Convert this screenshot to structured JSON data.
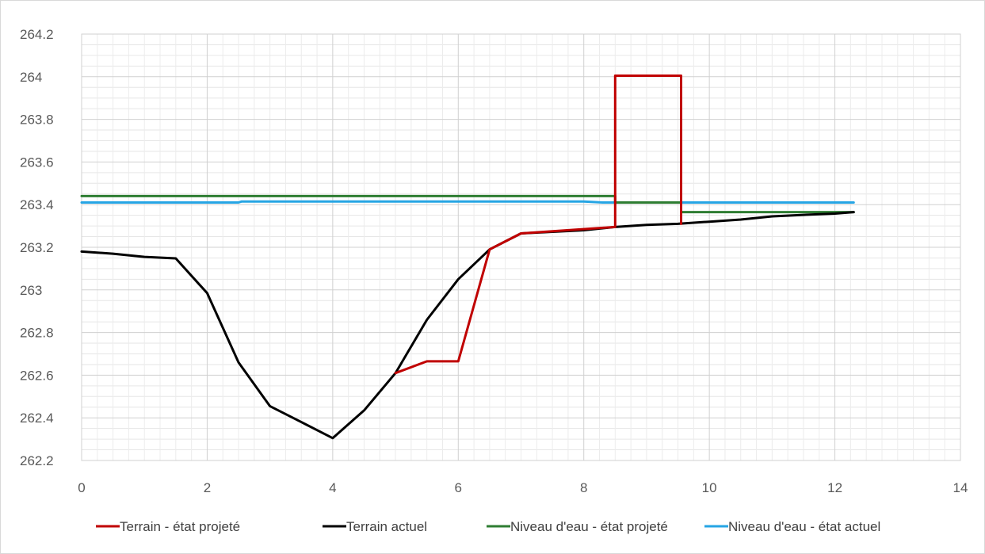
{
  "chart_data": {
    "type": "line",
    "title": "",
    "xlabel": "",
    "ylabel": "",
    "xlim": [
      0,
      14
    ],
    "ylim": [
      262.2,
      264.2
    ],
    "x_ticks": [
      "0",
      "2",
      "4",
      "6",
      "8",
      "10",
      "12",
      "14"
    ],
    "y_ticks": [
      "262.2",
      "262.4",
      "262.6",
      "262.8",
      "263",
      "263.2",
      "263.4",
      "263.6",
      "263.8",
      "264",
      "264.2"
    ],
    "grid": true,
    "legend_position": "bottom",
    "series": [
      {
        "name": "Terrain - état projeté",
        "color": "#c00000",
        "points": [
          [
            5,
            262.61
          ],
          [
            5.5,
            262.665
          ],
          [
            6,
            262.665
          ],
          [
            6.5,
            263.19
          ],
          [
            7,
            263.265
          ],
          [
            8.5,
            263.295
          ],
          [
            8.5,
            264.005
          ],
          [
            9.55,
            264.005
          ],
          [
            9.55,
            263.31
          ]
        ]
      },
      {
        "name": "Terrain actuel",
        "color": "#000000",
        "points": [
          [
            0,
            263.18
          ],
          [
            0.5,
            263.17
          ],
          [
            1,
            263.155
          ],
          [
            1.5,
            263.148
          ],
          [
            2,
            262.985
          ],
          [
            2.5,
            262.66
          ],
          [
            3,
            262.455
          ],
          [
            3.5,
            262.38
          ],
          [
            4,
            262.305
          ],
          [
            4.5,
            262.435
          ],
          [
            5,
            262.61
          ],
          [
            5.5,
            262.86
          ],
          [
            6,
            263.05
          ],
          [
            6.5,
            263.19
          ],
          [
            7,
            263.265
          ],
          [
            8,
            263.28
          ],
          [
            8.5,
            263.295
          ],
          [
            9,
            263.305
          ],
          [
            9.5,
            263.31
          ],
          [
            10,
            263.32
          ],
          [
            10.5,
            263.33
          ],
          [
            11,
            263.345
          ],
          [
            11.5,
            263.352
          ],
          [
            12,
            263.358
          ],
          [
            12.3,
            263.365
          ]
        ]
      },
      {
        "name": "Niveau d'eau - état projeté",
        "color": "#2e7d32",
        "points": [
          [
            0,
            263.44
          ],
          [
            8.5,
            263.44
          ],
          [
            8.5,
            263.41
          ],
          [
            9.55,
            263.41
          ],
          [
            9.55,
            263.365
          ],
          [
            12.3,
            263.365
          ]
        ]
      },
      {
        "name": "Niveau d'eau - état actuel",
        "color": "#26a5e4",
        "points": [
          [
            0,
            263.41
          ],
          [
            2.5,
            263.41
          ],
          [
            2.55,
            263.415
          ],
          [
            8,
            263.415
          ],
          [
            8.3,
            263.41
          ],
          [
            12.3,
            263.41
          ]
        ]
      }
    ]
  }
}
